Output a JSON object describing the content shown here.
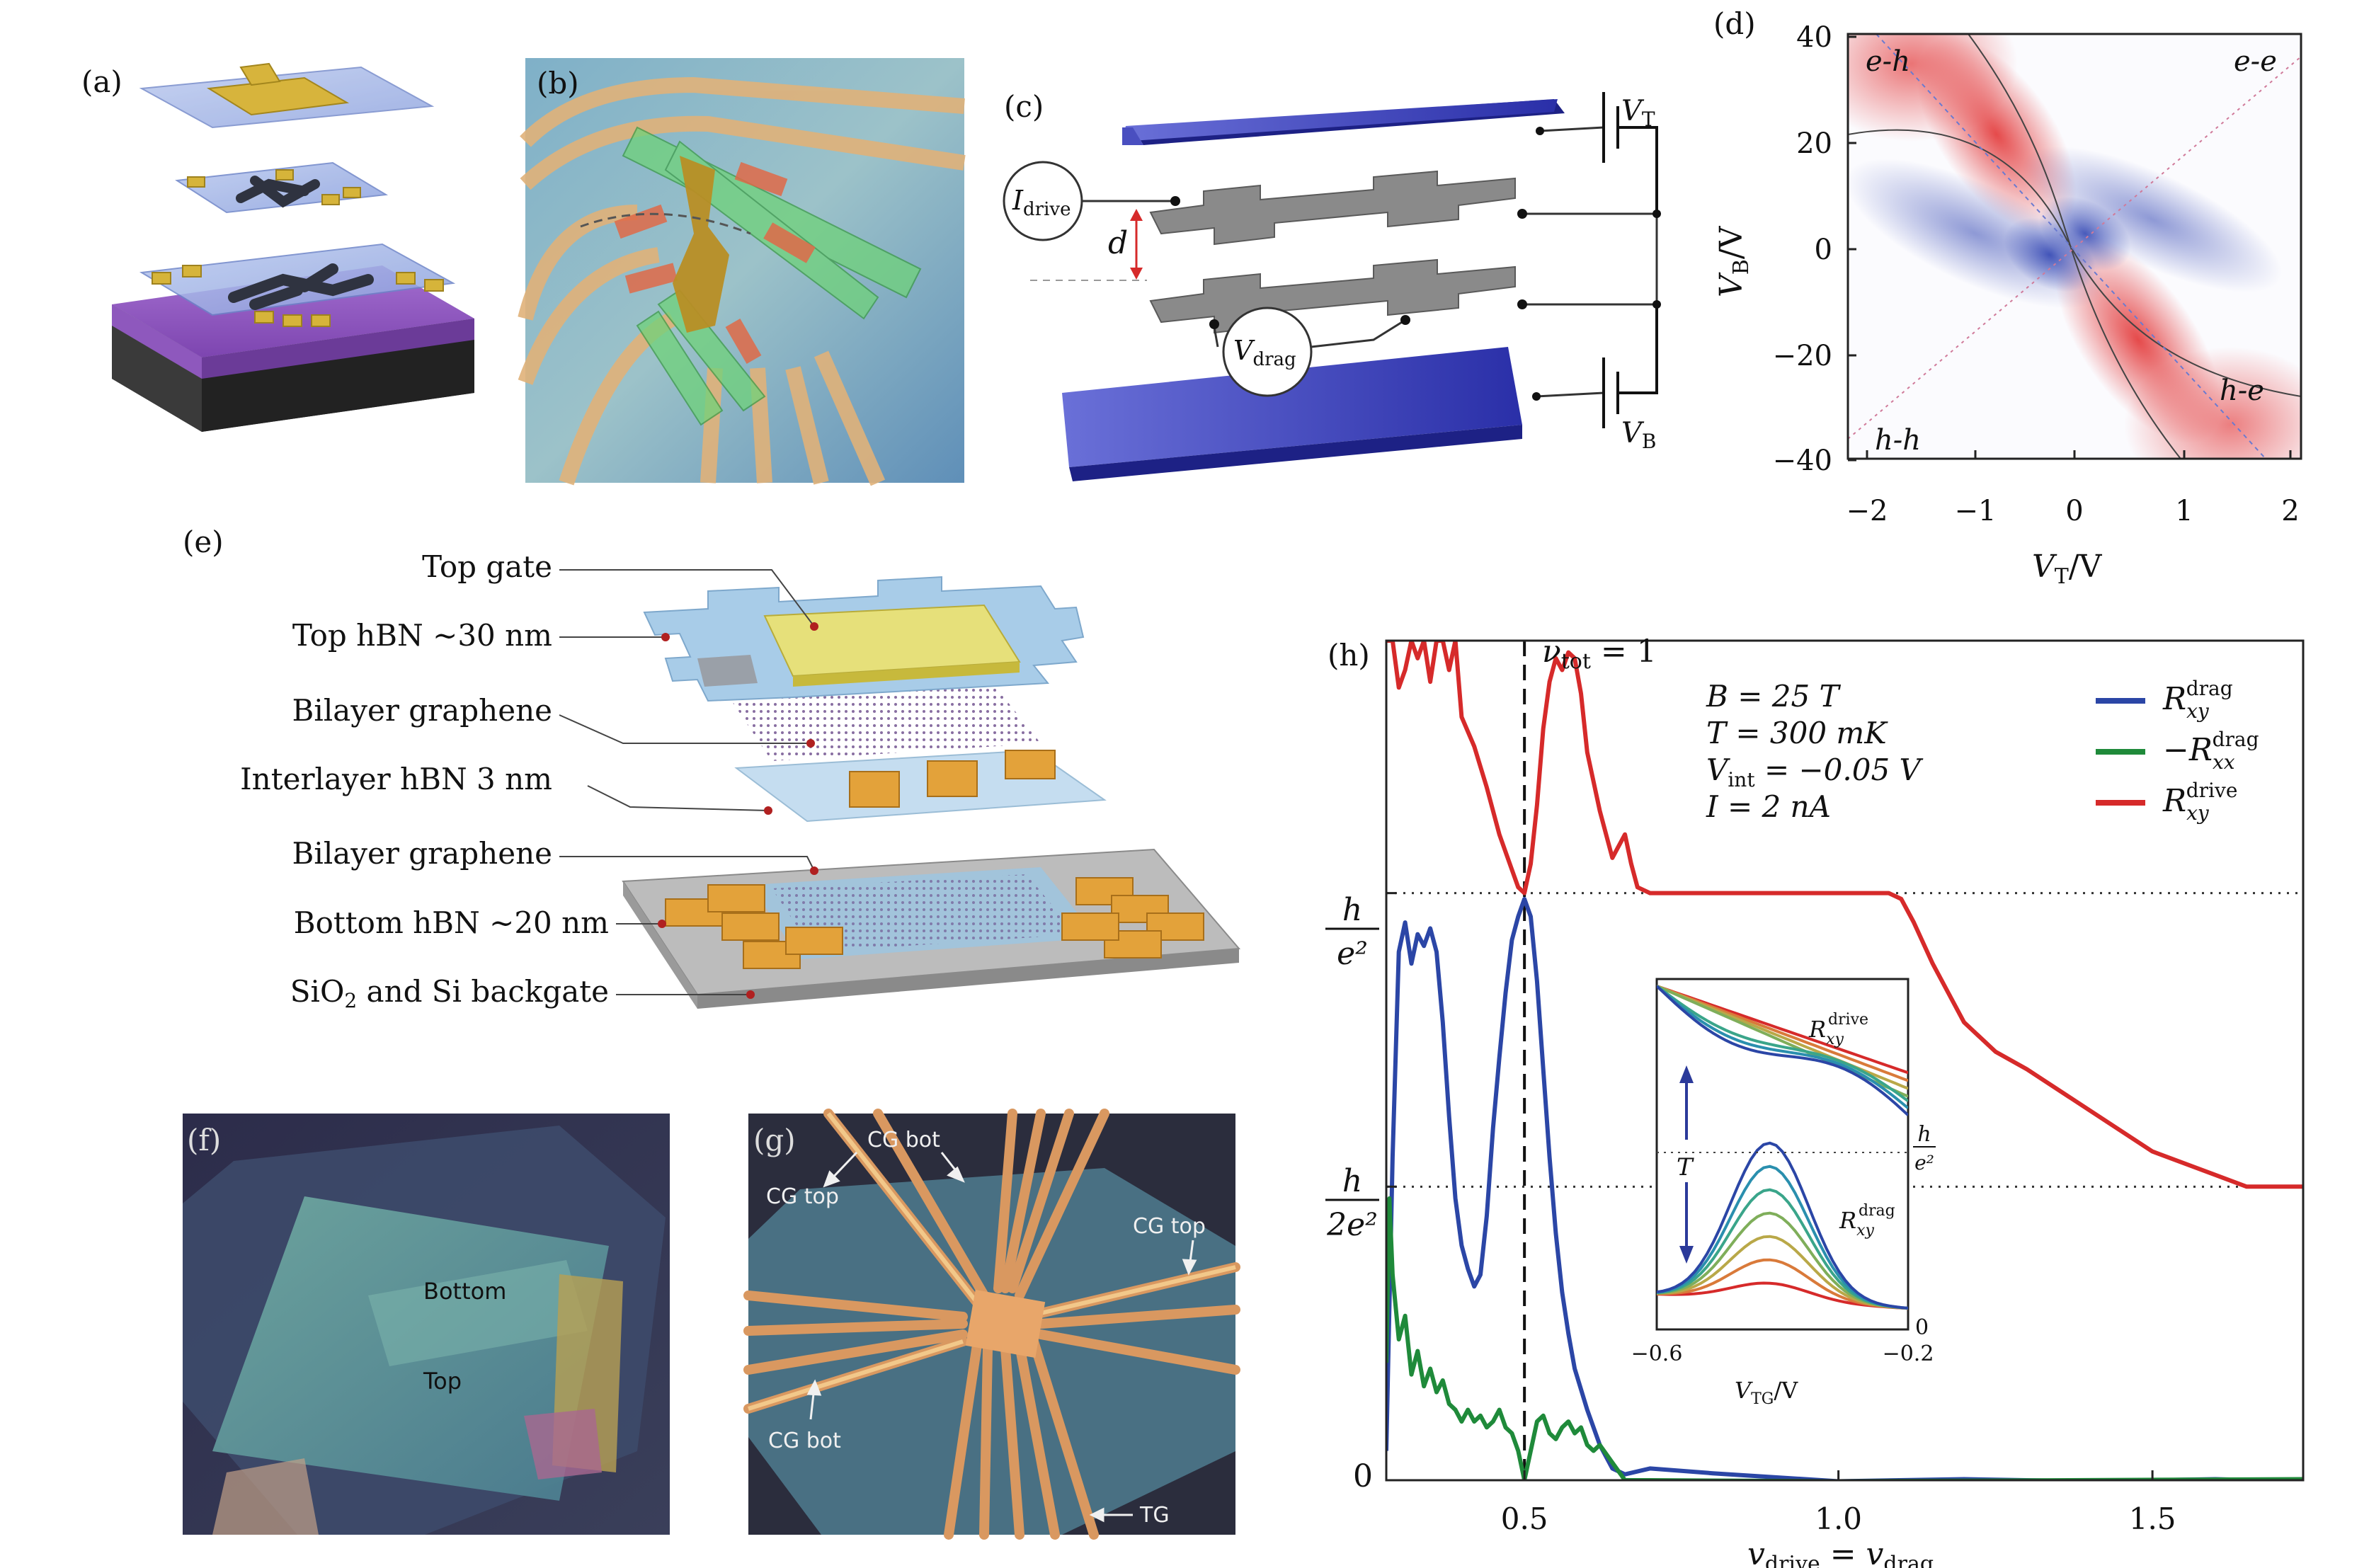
{
  "panels": {
    "a": "(a)",
    "b": "(b)",
    "c": "(c)",
    "d": "(d)",
    "e": "(e)",
    "f": "(f)",
    "g": "(g)",
    "h": "(h)"
  },
  "panel_c": {
    "i_drive": "I",
    "i_drive_sub": "drive",
    "v_drag": "V",
    "v_drag_sub": "drag",
    "d": "d",
    "v_t": "V",
    "v_t_sub": "T",
    "v_b": "V",
    "v_b_sub": "B"
  },
  "panel_d": {
    "quadrants": {
      "eh": "e-h",
      "ee": "e-e",
      "hh": "h-h",
      "he": "h-e"
    },
    "xlabel_main": "V",
    "xlabel_sub": "T",
    "xlabel_unit": "/V",
    "ylabel_main": "V",
    "ylabel_sub": "B",
    "ylabel_unit": "/V",
    "xticks": [
      "−2",
      "−1",
      "0",
      "1",
      "2"
    ],
    "yticks": [
      "40",
      "20",
      "0",
      "−20",
      "−40"
    ],
    "colors": {
      "positive": "#e02020",
      "negative": "#2a3fb0"
    }
  },
  "panel_e": {
    "layers": [
      "Top gate",
      "Top hBN ~30 nm",
      "Bilayer graphene",
      "Interlayer hBN 3 nm",
      "Bilayer graphene",
      "Bottom hBN ~20 nm",
      "SiO",
      "2",
      " and Si backgate"
    ]
  },
  "panel_f": {
    "bottom": "Bottom",
    "top": "Top"
  },
  "panel_g": {
    "cg_bot_1": "CG bot",
    "cg_top_1": "CG top",
    "cg_top_2": "CG top",
    "cg_bot_2": "CG bot",
    "tg": "TG"
  },
  "chart_data": {
    "type": "line",
    "annotation": "ν",
    "annotation_sub": "tot",
    "annotation_value": " = 1",
    "conditions": [
      "B = 25 T",
      "T = 300 mK",
      "V",
      "int",
      " = −0.05 V",
      "I = 2 nA"
    ],
    "xlabel": "v",
    "xlabel_sub1": "drive",
    "xlabel_eq": " = v",
    "xlabel_sub2": "drag",
    "xticks": [
      "0.5",
      "1.0",
      "1.5"
    ],
    "xlim": [
      0.28,
      1.74
    ],
    "ylim": [
      0,
      1.43
    ],
    "yticks": [
      {
        "num": "h",
        "den": "e²",
        "value": 1.0
      },
      {
        "num": "h",
        "den": "2e²",
        "value": 0.5
      },
      {
        "label": "0",
        "value": 0
      }
    ],
    "vline_x": 0.5,
    "series": [
      {
        "name": "R",
        "name_sub": "xy",
        "name_sup": "drag",
        "color": "#2b46a6",
        "x": [
          0.28,
          0.29,
          0.3,
          0.31,
          0.32,
          0.33,
          0.34,
          0.35,
          0.36,
          0.37,
          0.38,
          0.39,
          0.4,
          0.41,
          0.42,
          0.43,
          0.44,
          0.45,
          0.46,
          0.47,
          0.48,
          0.49,
          0.5,
          0.51,
          0.52,
          0.53,
          0.54,
          0.55,
          0.56,
          0.57,
          0.58,
          0.6,
          0.62,
          0.64,
          0.66,
          0.7,
          0.8,
          1.0,
          1.2,
          1.4,
          1.6,
          1.74
        ],
        "y": [
          0.05,
          0.55,
          0.9,
          0.95,
          0.88,
          0.93,
          0.91,
          0.94,
          0.9,
          0.78,
          0.62,
          0.48,
          0.4,
          0.36,
          0.33,
          0.35,
          0.45,
          0.6,
          0.72,
          0.83,
          0.92,
          0.96,
          0.99,
          0.96,
          0.85,
          0.7,
          0.55,
          0.42,
          0.32,
          0.25,
          0.19,
          0.12,
          0.06,
          0.02,
          0.01,
          0.02,
          0.01,
          0.0,
          0.0,
          0.0,
          0.0,
          0.0
        ]
      },
      {
        "name": "−R",
        "name_sub": "xx",
        "name_sup": "drag",
        "color": "#1f8a3a",
        "x": [
          0.28,
          0.285,
          0.29,
          0.3,
          0.31,
          0.32,
          0.33,
          0.34,
          0.35,
          0.36,
          0.37,
          0.38,
          0.39,
          0.4,
          0.41,
          0.42,
          0.43,
          0.44,
          0.45,
          0.46,
          0.47,
          0.48,
          0.49,
          0.5,
          0.51,
          0.52,
          0.53,
          0.54,
          0.55,
          0.56,
          0.57,
          0.58,
          0.59,
          0.6,
          0.61,
          0.62,
          0.64,
          0.66,
          0.7,
          1.0,
          1.74
        ],
        "y": [
          0.2,
          0.48,
          0.35,
          0.24,
          0.28,
          0.18,
          0.22,
          0.16,
          0.19,
          0.15,
          0.17,
          0.13,
          0.12,
          0.1,
          0.12,
          0.1,
          0.11,
          0.09,
          0.1,
          0.12,
          0.09,
          0.08,
          0.05,
          0.0,
          0.05,
          0.1,
          0.11,
          0.08,
          0.07,
          0.09,
          0.1,
          0.08,
          0.09,
          0.06,
          0.05,
          0.06,
          0.03,
          0.0,
          0.0,
          0.0,
          0.0
        ]
      },
      {
        "name": "R",
        "name_sub": "xy",
        "name_sup": "drive",
        "color": "#d62a2a",
        "x": [
          0.28,
          0.29,
          0.3,
          0.31,
          0.32,
          0.33,
          0.34,
          0.35,
          0.36,
          0.37,
          0.38,
          0.39,
          0.4,
          0.42,
          0.44,
          0.46,
          0.48,
          0.49,
          0.5,
          0.51,
          0.52,
          0.53,
          0.54,
          0.55,
          0.56,
          0.57,
          0.58,
          0.59,
          0.6,
          0.62,
          0.64,
          0.65,
          0.66,
          0.67,
          0.68,
          0.7,
          0.8,
          0.9,
          1.0,
          1.05,
          1.08,
          1.1,
          1.12,
          1.15,
          1.2,
          1.25,
          1.3,
          1.4,
          1.5,
          1.6,
          1.65,
          1.7,
          1.74
        ],
        "y": [
          1.43,
          1.43,
          1.35,
          1.38,
          1.43,
          1.4,
          1.43,
          1.36,
          1.43,
          1.43,
          1.38,
          1.43,
          1.3,
          1.25,
          1.18,
          1.1,
          1.04,
          1.01,
          1.0,
          1.05,
          1.15,
          1.28,
          1.36,
          1.4,
          1.38,
          1.41,
          1.4,
          1.34,
          1.24,
          1.14,
          1.06,
          1.08,
          1.1,
          1.05,
          1.01,
          1.0,
          1.0,
          1.0,
          1.0,
          1.0,
          1.0,
          0.99,
          0.95,
          0.88,
          0.78,
          0.73,
          0.7,
          0.63,
          0.56,
          0.52,
          0.5,
          0.5,
          0.5
        ]
      }
    ],
    "inset": {
      "xlabel": "V",
      "xlabel_sub": "TG",
      "xlabel_unit": "/V",
      "xticks": [
        "−0.6",
        "−0.2"
      ],
      "ytick_top_num": "h",
      "ytick_top_den": "e²",
      "ytick_zero": "0",
      "label_drive": "R",
      "label_drive_sub": "xy",
      "label_drive_sup": "drive",
      "label_drag": "R",
      "label_drag_sub": "xy",
      "label_drag_sup": "drag",
      "arrow_label": "T",
      "curve_colors": [
        "#d62a2a",
        "#d97a3a",
        "#b9a848",
        "#7fae5a",
        "#3aa58a",
        "#2a8fae",
        "#2b46a6"
      ]
    }
  }
}
